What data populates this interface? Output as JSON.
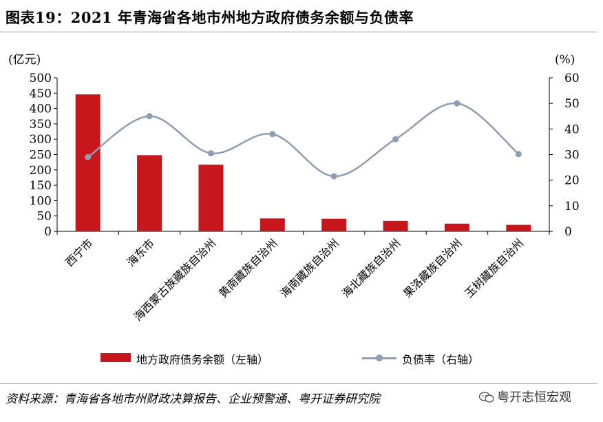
{
  "title": "图表19：2021 年青海省各地市州地方政府债务余额与负债率",
  "source": "资料来源：青海省各地市州财政决算报告、企业预警通、粤开证券研究院",
  "watermark": "粤开志恒宏观",
  "colors": {
    "bar": "#c8161d",
    "line": "#8d9db2",
    "axis": "#000000"
  },
  "chart_data": {
    "type": "bar+line",
    "categories": [
      "西宁市",
      "海东市",
      "海西蒙古族藏族自治州",
      "黄南藏族自治州",
      "海南藏族自治州",
      "海北藏族自治州",
      "果洛藏族自治州",
      "玉树藏族自治州"
    ],
    "y_left_label": "(亿元)",
    "y_right_label": "(%)",
    "y_left_lim": [
      0,
      500
    ],
    "y_right_lim": [
      0,
      60
    ],
    "y_left_ticks": [
      "0",
      "50",
      "100",
      "150",
      "200",
      "250",
      "300",
      "350",
      "400",
      "450",
      "500"
    ],
    "y_right_ticks": [
      "0",
      "10",
      "20",
      "30",
      "40",
      "50",
      "60"
    ],
    "series": [
      {
        "name": "地方政府债务余额（左轴）",
        "type": "bar",
        "axis": "left",
        "values": [
          446,
          248,
          217,
          42,
          41,
          34,
          25,
          21
        ]
      },
      {
        "name": "负债率（右轴）",
        "type": "line",
        "axis": "right",
        "smooth": true,
        "values": [
          29,
          45,
          30.5,
          38,
          21.5,
          36,
          50,
          30.2
        ]
      }
    ],
    "legend_position": "bottom"
  }
}
